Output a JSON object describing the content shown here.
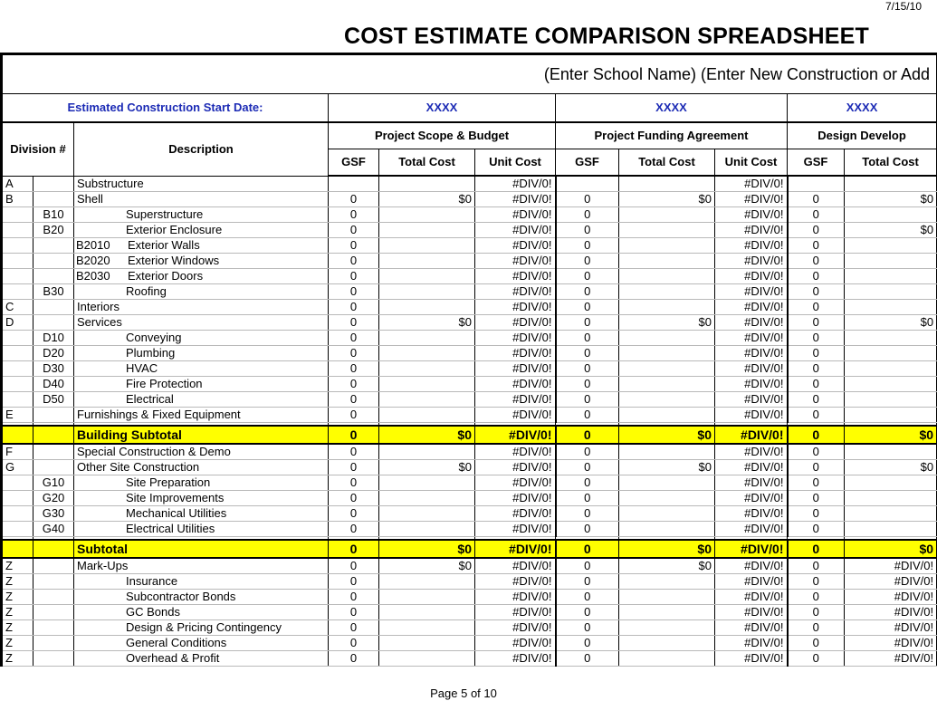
{
  "page_date": "7/15/10",
  "title": "COST ESTIMATE COMPARISON SPREADSHEET",
  "school_line": "(Enter School Name) (Enter New Construction or Add",
  "start_date_label": "Estimated Construction Start Date:",
  "phase_dates": [
    "XXXX",
    "XXXX",
    "XXXX"
  ],
  "headers": {
    "division": "Division #",
    "description": "Description",
    "groups": [
      "Project Scope & Budget",
      "Project Funding Agreement",
      "Design Develop"
    ],
    "gsf": "GSF",
    "total_cost": "Total Cost",
    "unit_cost": "Unit Cost"
  },
  "rows": [
    {
      "d1": "A",
      "d2": "",
      "desc": "Substructure",
      "indent": false,
      "v": [
        "",
        "",
        "#DIV/0!",
        "",
        "",
        "#DIV/0!",
        "",
        ""
      ]
    },
    {
      "d1": "B",
      "d2": "",
      "desc": "Shell",
      "indent": false,
      "v": [
        "0",
        "$0",
        "#DIV/0!",
        "0",
        "$0",
        "#DIV/0!",
        "0",
        "$0"
      ]
    },
    {
      "d1": "",
      "d2": "B10",
      "desc": "Superstructure",
      "indent": true,
      "v": [
        "0",
        "",
        "#DIV/0!",
        "0",
        "",
        "#DIV/0!",
        "0",
        ""
      ]
    },
    {
      "d1": "",
      "d2": "B20",
      "desc": "Exterior Enclosure",
      "indent": true,
      "v": [
        "0",
        "",
        "#DIV/0!",
        "0",
        "",
        "#DIV/0!",
        "0",
        "$0"
      ]
    },
    {
      "d1": "",
      "d2": "",
      "code": "B2010",
      "desc": "Exterior Walls",
      "indent": false,
      "v": [
        "0",
        "",
        "#DIV/0!",
        "0",
        "",
        "#DIV/0!",
        "0",
        ""
      ]
    },
    {
      "d1": "",
      "d2": "",
      "code": "B2020",
      "desc": "Exterior Windows",
      "indent": false,
      "v": [
        "0",
        "",
        "#DIV/0!",
        "0",
        "",
        "#DIV/0!",
        "0",
        ""
      ]
    },
    {
      "d1": "",
      "d2": "",
      "code": "B2030",
      "desc": "Exterior Doors",
      "indent": false,
      "v": [
        "0",
        "",
        "#DIV/0!",
        "0",
        "",
        "#DIV/0!",
        "0",
        ""
      ]
    },
    {
      "d1": "",
      "d2": "B30",
      "desc": "Roofing",
      "indent": true,
      "v": [
        "0",
        "",
        "#DIV/0!",
        "0",
        "",
        "#DIV/0!",
        "0",
        ""
      ]
    },
    {
      "d1": "C",
      "d2": "",
      "desc": "Interiors",
      "indent": false,
      "v": [
        "0",
        "",
        "#DIV/0!",
        "0",
        "",
        "#DIV/0!",
        "0",
        ""
      ]
    },
    {
      "d1": "D",
      "d2": "",
      "desc": "Services",
      "indent": false,
      "v": [
        "0",
        "$0",
        "#DIV/0!",
        "0",
        "$0",
        "#DIV/0!",
        "0",
        "$0"
      ]
    },
    {
      "d1": "",
      "d2": "D10",
      "desc": "Conveying",
      "indent": true,
      "v": [
        "0",
        "",
        "#DIV/0!",
        "0",
        "",
        "#DIV/0!",
        "0",
        ""
      ]
    },
    {
      "d1": "",
      "d2": "D20",
      "desc": "Plumbing",
      "indent": true,
      "v": [
        "0",
        "",
        "#DIV/0!",
        "0",
        "",
        "#DIV/0!",
        "0",
        ""
      ]
    },
    {
      "d1": "",
      "d2": "D30",
      "desc": "HVAC",
      "indent": true,
      "v": [
        "0",
        "",
        "#DIV/0!",
        "0",
        "",
        "#DIV/0!",
        "0",
        ""
      ]
    },
    {
      "d1": "",
      "d2": "D40",
      "desc": "Fire Protection",
      "indent": true,
      "v": [
        "0",
        "",
        "#DIV/0!",
        "0",
        "",
        "#DIV/0!",
        "0",
        ""
      ]
    },
    {
      "d1": "",
      "d2": "D50",
      "desc": "Electrical",
      "indent": true,
      "v": [
        "0",
        "",
        "#DIV/0!",
        "0",
        "",
        "#DIV/0!",
        "0",
        ""
      ]
    },
    {
      "d1": "E",
      "d2": "",
      "desc": "Furnishings & Fixed Equipment",
      "indent": false,
      "v": [
        "0",
        "",
        "#DIV/0!",
        "0",
        "",
        "#DIV/0!",
        "0",
        ""
      ]
    },
    {
      "type": "subtotal",
      "desc": "Building Subtotal",
      "v": [
        "0",
        "$0",
        "#DIV/0!",
        "0",
        "$0",
        "#DIV/0!",
        "0",
        "$0"
      ]
    },
    {
      "d1": "F",
      "d2": "",
      "desc": "Special Construction & Demo",
      "indent": false,
      "v": [
        "0",
        "",
        "#DIV/0!",
        "0",
        "",
        "#DIV/0!",
        "0",
        ""
      ]
    },
    {
      "d1": "G",
      "d2": "",
      "desc": "Other Site Construction",
      "indent": false,
      "v": [
        "0",
        "$0",
        "#DIV/0!",
        "0",
        "$0",
        "#DIV/0!",
        "0",
        "$0"
      ]
    },
    {
      "d1": "",
      "d2": "G10",
      "desc": "Site Preparation",
      "indent": true,
      "v": [
        "0",
        "",
        "#DIV/0!",
        "0",
        "",
        "#DIV/0!",
        "0",
        ""
      ]
    },
    {
      "d1": "",
      "d2": "G20",
      "desc": "Site Improvements",
      "indent": true,
      "v": [
        "0",
        "",
        "#DIV/0!",
        "0",
        "",
        "#DIV/0!",
        "0",
        ""
      ]
    },
    {
      "d1": "",
      "d2": "G30",
      "desc": "Mechanical Utilities",
      "indent": true,
      "v": [
        "0",
        "",
        "#DIV/0!",
        "0",
        "",
        "#DIV/0!",
        "0",
        ""
      ]
    },
    {
      "d1": "",
      "d2": "G40",
      "desc": "Electrical Utilities",
      "indent": true,
      "v": [
        "0",
        "",
        "#DIV/0!",
        "0",
        "",
        "#DIV/0!",
        "0",
        ""
      ]
    },
    {
      "type": "subtotal",
      "desc": "Subtotal",
      "v": [
        "0",
        "$0",
        "#DIV/0!",
        "0",
        "$0",
        "#DIV/0!",
        "0",
        "$0"
      ]
    },
    {
      "d1": "Z",
      "d2": "",
      "desc": "Mark-Ups",
      "indent": false,
      "v": [
        "0",
        "$0",
        "#DIV/0!",
        "0",
        "$0",
        "#DIV/0!",
        "0",
        "#DIV/0!"
      ]
    },
    {
      "d1": "Z",
      "d2": "",
      "desc": "Insurance",
      "indent": true,
      "v": [
        "0",
        "",
        "#DIV/0!",
        "0",
        "",
        "#DIV/0!",
        "0",
        "#DIV/0!"
      ]
    },
    {
      "d1": "Z",
      "d2": "",
      "desc": "Subcontractor Bonds",
      "indent": true,
      "v": [
        "0",
        "",
        "#DIV/0!",
        "0",
        "",
        "#DIV/0!",
        "0",
        "#DIV/0!"
      ]
    },
    {
      "d1": "Z",
      "d2": "",
      "desc": "GC Bonds",
      "indent": true,
      "v": [
        "0",
        "",
        "#DIV/0!",
        "0",
        "",
        "#DIV/0!",
        "0",
        "#DIV/0!"
      ]
    },
    {
      "d1": "Z",
      "d2": "",
      "desc": "Design & Pricing Contingency",
      "indent": true,
      "v": [
        "0",
        "",
        "#DIV/0!",
        "0",
        "",
        "#DIV/0!",
        "0",
        "#DIV/0!"
      ]
    },
    {
      "d1": "Z",
      "d2": "",
      "desc": "General Conditions",
      "indent": true,
      "v": [
        "0",
        "",
        "#DIV/0!",
        "0",
        "",
        "#DIV/0!",
        "0",
        "#DIV/0!"
      ]
    },
    {
      "d1": "Z",
      "d2": "",
      "desc": "Overhead & Profit",
      "indent": true,
      "v": [
        "0",
        "",
        "#DIV/0!",
        "0",
        "",
        "#DIV/0!",
        "0",
        "#DIV/0!"
      ]
    }
  ],
  "footer": "Page 5 of 10"
}
